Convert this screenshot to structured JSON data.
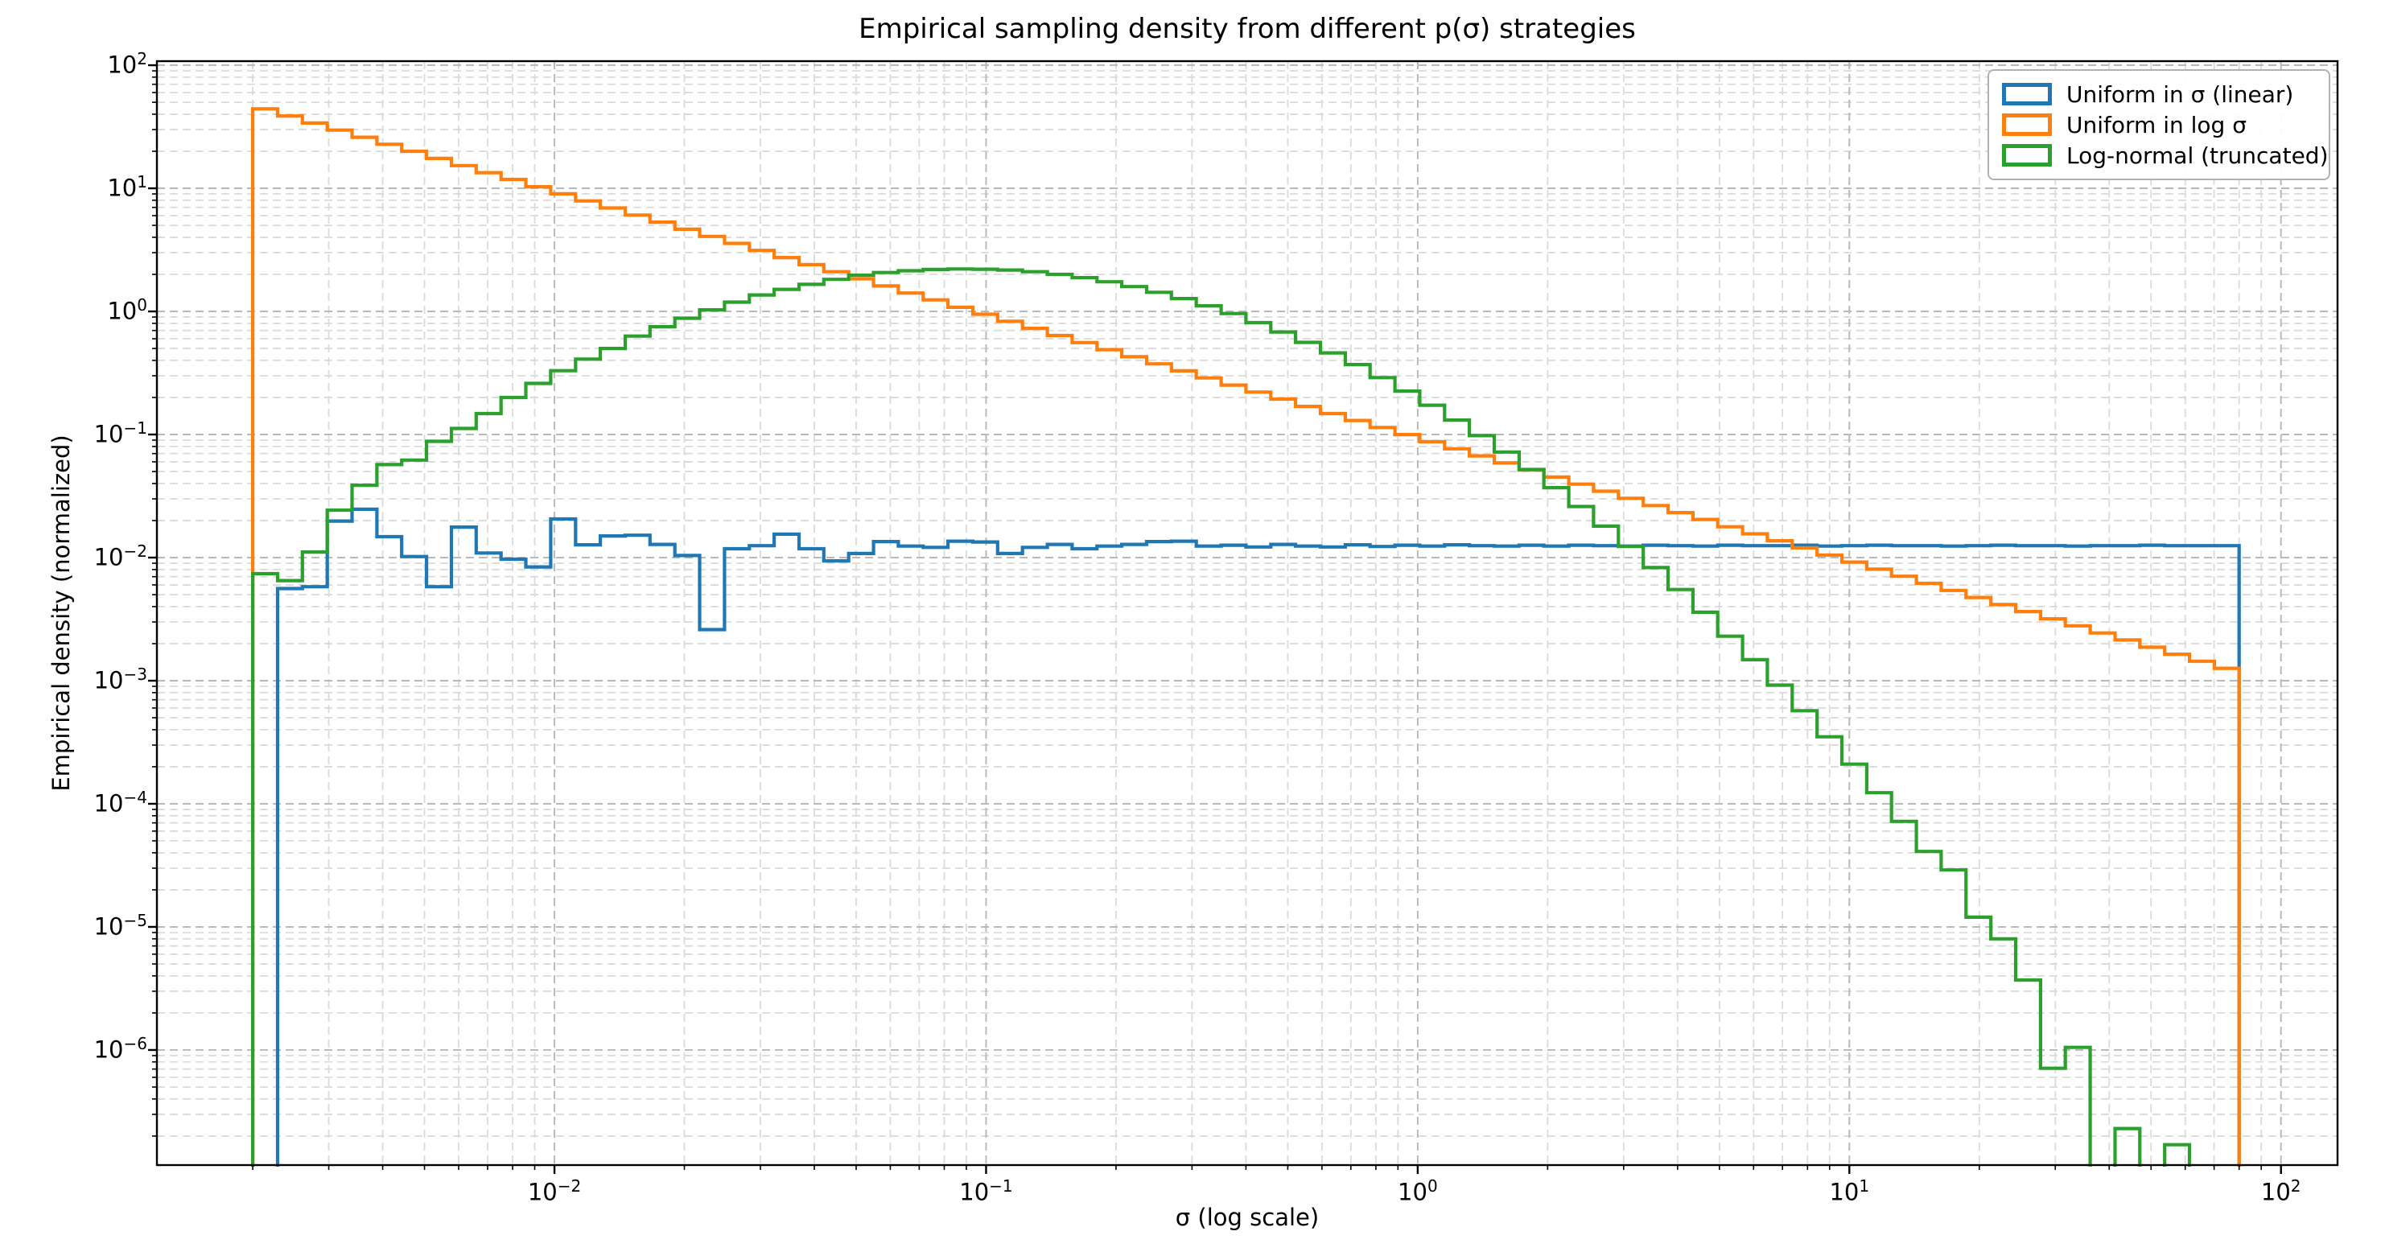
{
  "title": "Empirical sampling density from different p(σ) strategies",
  "xlabel": "σ (log scale)",
  "ylabel": "Empirical density (normalized)",
  "legend": {
    "items": [
      {
        "label": "Uniform in σ (linear)",
        "color": "#1f77b4"
      },
      {
        "label": "Uniform in log σ",
        "color": "#ff7f0e"
      },
      {
        "label": "Log-normal (truncated)",
        "color": "#2ca02c"
      }
    ]
  },
  "colors": {
    "blue": "#1f77b4",
    "orange": "#ff7f0e",
    "green": "#2ca02c",
    "spine": "#000000",
    "grid_major": "#b9b9b9",
    "grid_minor": "#dadada",
    "legend_border": "#b0b0b0",
    "background": "#ffffff"
  },
  "axes": {
    "x_scale": "log",
    "y_scale": "log",
    "xlim": [
      0.0012,
      135
    ],
    "ylim": [
      1.2e-07,
      108
    ],
    "x_tick_exponents": [
      -2,
      -1,
      0,
      1,
      2
    ],
    "y_tick_exponents": [
      2,
      1,
      0,
      -1,
      -2,
      -3,
      -4,
      -5,
      -6
    ],
    "grid": "dashed major and minor gridlines, both axes",
    "legend_position": "upper right"
  },
  "chart_data": {
    "type": "histogram-step",
    "bins": {
      "sigma_min": 0.002,
      "sigma_max": 80,
      "count": 80,
      "spacing": "log"
    },
    "series": [
      {
        "name": "Uniform in σ (linear)",
        "color": "#1f77b4",
        "values": [
          0,
          0.0056,
          0.0058,
          0.0198,
          0.0247,
          0.0148,
          0.0102,
          0.0058,
          0.0177,
          0.0109,
          0.0097,
          0.0084,
          0.0206,
          0.0127,
          0.015,
          0.0152,
          0.0128,
          0.0104,
          0.0026,
          0.0118,
          0.0125,
          0.0155,
          0.0118,
          0.0094,
          0.0108,
          0.0135,
          0.0124,
          0.0121,
          0.0136,
          0.0134,
          0.0108,
          0.0121,
          0.0128,
          0.0118,
          0.0124,
          0.0128,
          0.0135,
          0.0136,
          0.0124,
          0.0126,
          0.0122,
          0.0128,
          0.0124,
          0.0122,
          0.0127,
          0.0123,
          0.0126,
          0.0124,
          0.0127,
          0.0125,
          0.0124,
          0.0126,
          0.0124,
          0.0126,
          0.0125,
          0.0124,
          0.0126,
          0.0125,
          0.0124,
          0.0126,
          0.0125,
          0.0125,
          0.0126,
          0.0124,
          0.0125,
          0.0126,
          0.0125,
          0.0125,
          0.0124,
          0.0125,
          0.0126,
          0.0125,
          0.0125,
          0.0124,
          0.0125,
          0.0125,
          0.0126,
          0.0125,
          0.0125,
          0.0125
        ]
      },
      {
        "name": "Uniform in log σ",
        "color": "#ff7f0e",
        "values": [
          44.2,
          38.7,
          33.9,
          29.7,
          26.0,
          22.8,
          20.0,
          17.5,
          15.3,
          13.4,
          11.8,
          10.3,
          9.02,
          7.9,
          6.92,
          6.06,
          5.31,
          4.65,
          4.07,
          3.57,
          3.13,
          2.74,
          2.4,
          2.1,
          1.84,
          1.61,
          1.41,
          1.24,
          1.08,
          0.949,
          0.831,
          0.728,
          0.637,
          0.558,
          0.489,
          0.428,
          0.375,
          0.329,
          0.288,
          0.252,
          0.221,
          0.194,
          0.169,
          0.148,
          0.13,
          0.114,
          0.0998,
          0.0874,
          0.0765,
          0.067,
          0.0587,
          0.0514,
          0.0451,
          0.0395,
          0.0346,
          0.0303,
          0.0265,
          0.0232,
          0.0204,
          0.0178,
          0.0156,
          0.0137,
          0.012,
          0.0105,
          0.00919,
          0.00805,
          0.00705,
          0.00618,
          0.00541,
          0.00474,
          0.00415,
          0.00364,
          0.00318,
          0.00279,
          0.00244,
          0.00214,
          0.00187,
          0.00164,
          0.00144,
          0.00126
        ]
      },
      {
        "name": "Log-normal (truncated)",
        "color": "#2ca02c",
        "values": [
          0.0074,
          0.0065,
          0.0111,
          0.0243,
          0.0387,
          0.057,
          0.062,
          0.088,
          0.112,
          0.148,
          0.2,
          0.26,
          0.33,
          0.41,
          0.5,
          0.63,
          0.75,
          0.88,
          1.03,
          1.19,
          1.36,
          1.51,
          1.66,
          1.82,
          1.97,
          2.07,
          2.14,
          2.19,
          2.21,
          2.2,
          2.17,
          2.1,
          2.0,
          1.88,
          1.74,
          1.59,
          1.43,
          1.27,
          1.11,
          0.96,
          0.81,
          0.68,
          0.56,
          0.46,
          0.37,
          0.29,
          0.225,
          0.173,
          0.131,
          0.098,
          0.072,
          0.052,
          0.037,
          0.026,
          0.018,
          0.0123,
          0.0083,
          0.0055,
          0.0036,
          0.0023,
          0.00148,
          0.00092,
          0.00057,
          0.00035,
          0.00021,
          0.000123,
          7.2e-05,
          4.1e-05,
          2.9e-05,
          1.2e-05,
          8e-06,
          3.7e-06,
          7.1e-07,
          1.05e-06,
          0,
          2.3e-07,
          0,
          1.7e-07,
          0,
          0
        ]
      }
    ]
  }
}
